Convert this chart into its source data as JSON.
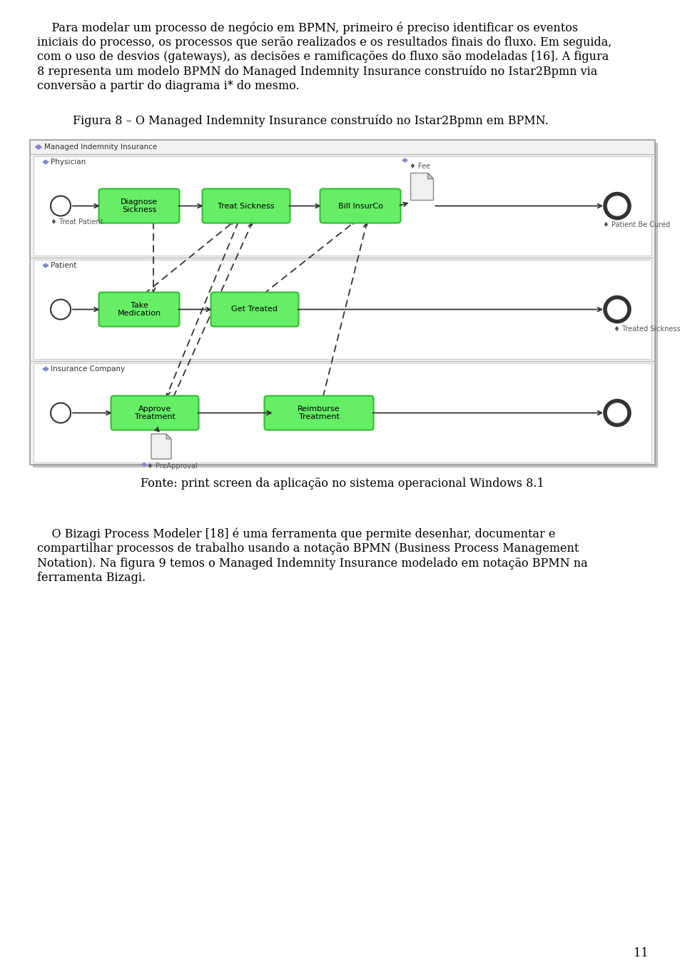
{
  "page_bg": "#ffffff",
  "text_color": "#000000",
  "body_fontsize": 11.5,
  "para1_indent": "    Para modelar um processo de negócio em BPMN, primeiro é preciso identificar os eventos",
  "para1_lines": [
    "    Para modelar um processo de negócio em BPMN, primeiro é preciso identificar os eventos",
    "iniciais do processo, os processos que serão realizados e os resultados finais do fluxo. Em seguida,",
    "com o uso de desvios (gateways), as decisões e ramificações do fluxo são modeladas [16]. A figura",
    "8 representa um modelo BPMN do Managed Indemnity Insurance construído no Istar2Bpmn via",
    "conversão a partir do diagrama i* do mesmo."
  ],
  "caption": "Figura 8 – O Managed Indemnity Insurance construído no Istar2Bpmn em BPMN.",
  "source": "Fonte: print screen da aplicação no sistema operacional Windows 8.1",
  "para2_lines": [
    "    O Bizagi Process Modeler [18] é uma ferramenta que permite desenhar, documentar e",
    "compartilhar processos de trabalho usando a notação BPMN (Business Process Management",
    "Notation). Na figura 9 temos o Managed Indemnity Insurance modelado em notação BPMN na",
    "ferramenta Bizagi."
  ],
  "page_number": "11",
  "diagram_title": "Managed Indemnity Insurance",
  "lane1_name": "Physician",
  "lane2_name": "Patient",
  "lane3_name": "Insurance Company",
  "label_treat_patient": "♦ Treat Patient",
  "label_fee": "♦ Fee",
  "label_patient_be_cured": "♦ Patient Be Cured",
  "label_treated_sickness": "♦ Treated Sickness",
  "label_preapproval": "♦ PreApproval",
  "node_fill": "#66ee66",
  "node_border": "#33bb33",
  "diamond_color": "#8888cc",
  "doc_fill": "#f0f0f0",
  "doc_border": "#888888"
}
